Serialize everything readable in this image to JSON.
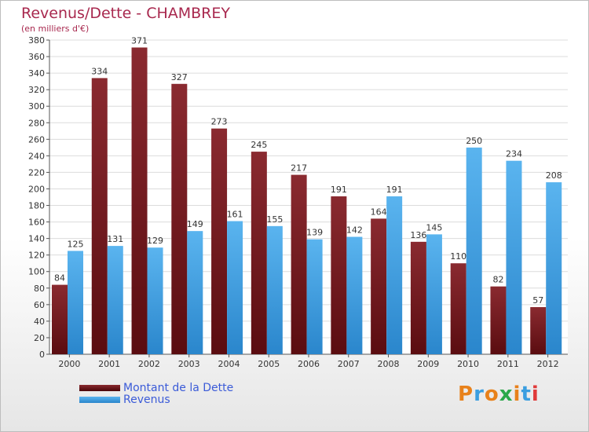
{
  "title": "Revenus/Dette - CHAMBREY",
  "subtitle": "(en milliers d'€)",
  "logo_text": "Proxiti",
  "colors": {
    "dette": "#7b1a1f",
    "revenus": "#3a9ee0",
    "title": "#a8284e",
    "legend_text": "#3b5bd8"
  },
  "chart_data": {
    "type": "bar",
    "categories": [
      "2000",
      "2001",
      "2002",
      "2003",
      "2004",
      "2005",
      "2006",
      "2007",
      "2008",
      "2009",
      "2010",
      "2011",
      "2012"
    ],
    "series": [
      {
        "name": "Montant de la Dette",
        "values": [
          84,
          334,
          371,
          327,
          273,
          245,
          217,
          191,
          164,
          136,
          110,
          82,
          57
        ]
      },
      {
        "name": "Revenus",
        "values": [
          125,
          131,
          129,
          149,
          161,
          155,
          139,
          142,
          191,
          145,
          250,
          234,
          208
        ]
      }
    ],
    "ylim": [
      0,
      380
    ],
    "yticks": [
      0,
      20,
      40,
      60,
      80,
      100,
      120,
      140,
      160,
      180,
      200,
      220,
      240,
      260,
      280,
      300,
      320,
      340,
      360,
      380
    ],
    "grid": true,
    "legend_position": "bottom-left"
  }
}
